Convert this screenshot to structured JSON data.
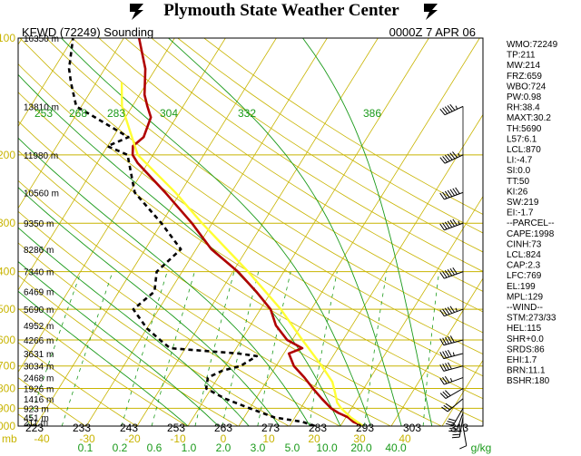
{
  "header": {
    "title": "Plymouth State Weather Center",
    "station": "KFWD (72249) Sounding",
    "time": "0000Z  7 APR 06"
  },
  "indices": [
    "WMO:72249",
    "TP:211",
    "MW:214",
    "FRZ:659",
    "WBO:724",
    "PW:0.98",
    "RH:38.4",
    "MAXT:30.2",
    "TH:5690",
    "L57:6.1",
    "LCL:870",
    "LI:-4.7",
    "SI:0.0",
    "TT:50",
    "KI:26",
    "SW:219",
    "EI:-1.7",
    "--PARCEL--",
    "CAPE:1998",
    "CINH:73",
    "LCL:824",
    "CAP:2.3",
    "LFC:769",
    "EL:199",
    "MPL:129",
    "--WIND--",
    "STM:273/33",
    "HEL:115",
    "SHR+0.0",
    "SRDS:86",
    "EHI:1.7",
    "BRN:11.1",
    "BSHR:180"
  ],
  "chart_data": {
    "type": "line",
    "title": "Plymouth State Weather Center",
    "subtitle": "KFWD (72249) Sounding   0000Z  7 APR 06",
    "y_axis": {
      "scale": "log-pressure",
      "unit": "mb",
      "ticks": [
        100,
        200,
        300,
        400,
        500,
        600,
        700,
        800,
        900,
        1000
      ],
      "range": [
        1000,
        100
      ]
    },
    "x_axis": {
      "unit": "C",
      "ticks": [
        -40,
        -30,
        -20,
        -10,
        0,
        10,
        20,
        30,
        40
      ],
      "range": [
        -45,
        40
      ]
    },
    "height_labels": [
      "16350 m",
      "13810 m",
      "11980 m",
      "10560 m",
      "9350 m",
      "8286 m",
      "7340 m",
      "6469 m",
      "5690 m",
      "4952 m",
      "4266 m",
      "3631 m",
      "3034 m",
      "2468 m",
      "1926 m",
      "1416 m",
      "923 m",
      "451 m",
      "211 m"
    ],
    "height_label_pressures": [
      100,
      150,
      200,
      250,
      300,
      350,
      400,
      450,
      500,
      550,
      600,
      650,
      700,
      750,
      800,
      850,
      900,
      950,
      975
    ],
    "theta_labels": [
      "223",
      "233",
      "243",
      "253",
      "263",
      "273",
      "283",
      "293",
      "303",
      "313"
    ],
    "theta_labels_top": [
      "253",
      "268",
      "283",
      "304",
      "332",
      "386"
    ],
    "mixing_ratio_labels": [
      "0.1",
      "0.2",
      "0.6",
      "1.0",
      "2.0",
      "3.0",
      "5.0",
      "10.0",
      "20.0",
      "40.0"
    ],
    "mixing_ratio_unit": "g/kg",
    "series": [
      {
        "name": "Temperature",
        "color": "#b00000",
        "points": [
          [
            1000,
            24.5
          ],
          [
            975,
            22
          ],
          [
            950,
            20.5
          ],
          [
            925,
            18
          ],
          [
            900,
            16
          ],
          [
            850,
            13
          ],
          [
            800,
            10
          ],
          [
            750,
            7
          ],
          [
            700,
            3.5
          ],
          [
            650,
            1
          ],
          [
            630,
            3
          ],
          [
            600,
            -1
          ],
          [
            550,
            -5
          ],
          [
            500,
            -8
          ],
          [
            450,
            -13
          ],
          [
            400,
            -19
          ],
          [
            350,
            -27
          ],
          [
            300,
            -34
          ],
          [
            250,
            -43
          ],
          [
            210,
            -52
          ],
          [
            200,
            -54
          ],
          [
            190,
            -55
          ],
          [
            180,
            -54
          ],
          [
            160,
            -55
          ],
          [
            150,
            -57
          ],
          [
            140,
            -59
          ],
          [
            120,
            -62
          ],
          [
            100,
            -67
          ]
        ]
      },
      {
        "name": "Dewpoint",
        "color": "#000000",
        "points": [
          [
            1000,
            15
          ],
          [
            975,
            12
          ],
          [
            950,
            6
          ],
          [
            900,
            0
          ],
          [
            850,
            -6
          ],
          [
            800,
            -11
          ],
          [
            750,
            -12
          ],
          [
            720,
            -10
          ],
          [
            700,
            -7
          ],
          [
            660,
            -5
          ],
          [
            650,
            -9
          ],
          [
            630,
            -23
          ],
          [
            600,
            -26
          ],
          [
            560,
            -30
          ],
          [
            500,
            -35
          ],
          [
            450,
            -33
          ],
          [
            400,
            -35
          ],
          [
            350,
            -33
          ],
          [
            300,
            -40
          ],
          [
            250,
            -49
          ],
          [
            200,
            -55
          ],
          [
            190,
            -60
          ],
          [
            180,
            -57
          ],
          [
            160,
            -66
          ],
          [
            150,
            -71
          ],
          [
            130,
            -75
          ],
          [
            120,
            -77
          ],
          [
            100,
            -80
          ]
        ]
      },
      {
        "name": "Parcel",
        "color": "#ffff33",
        "points": [
          [
            1000,
            24.5
          ],
          [
            950,
            21
          ],
          [
            900,
            18
          ],
          [
            870,
            16.5
          ],
          [
            824,
            15
          ],
          [
            769,
            13
          ],
          [
            700,
            9
          ],
          [
            600,
            2
          ],
          [
            500,
            -6
          ],
          [
            400,
            -17
          ],
          [
            300,
            -32
          ],
          [
            250,
            -41
          ],
          [
            200,
            -53
          ],
          [
            150,
            -62
          ],
          [
            130,
            -65
          ]
        ]
      }
    ],
    "winds": [
      {
        "p": 1000,
        "dir": 170,
        "spd": 10
      },
      {
        "p": 950,
        "dir": 190,
        "spd": 25
      },
      {
        "p": 925,
        "dir": 200,
        "spd": 30
      },
      {
        "p": 900,
        "dir": 210,
        "spd": 30
      },
      {
        "p": 850,
        "dir": 230,
        "spd": 30
      },
      {
        "p": 800,
        "dir": 240,
        "spd": 30
      },
      {
        "p": 750,
        "dir": 250,
        "spd": 35
      },
      {
        "p": 700,
        "dir": 255,
        "spd": 40
      },
      {
        "p": 650,
        "dir": 255,
        "spd": 45
      },
      {
        "p": 600,
        "dir": 255,
        "spd": 50
      },
      {
        "p": 500,
        "dir": 250,
        "spd": 55
      },
      {
        "p": 400,
        "dir": 250,
        "spd": 60
      },
      {
        "p": 300,
        "dir": 250,
        "spd": 65
      },
      {
        "p": 250,
        "dir": 250,
        "spd": 70
      },
      {
        "p": 200,
        "dir": 245,
        "spd": 65
      },
      {
        "p": 150,
        "dir": 245,
        "spd": 55
      }
    ],
    "legend": "none",
    "grid": true
  }
}
